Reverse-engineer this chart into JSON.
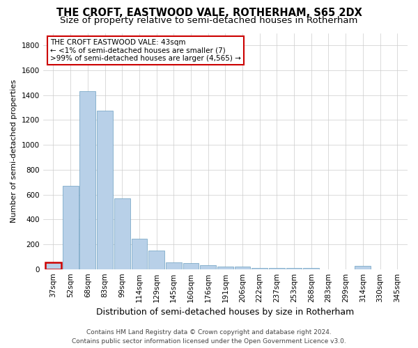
{
  "title": "THE CROFT, EASTWOOD VALE, ROTHERHAM, S65 2DX",
  "subtitle": "Size of property relative to semi-detached houses in Rotherham",
  "xlabel": "Distribution of semi-detached houses by size in Rotherham",
  "ylabel": "Number of semi-detached properties",
  "categories": [
    "37sqm",
    "52sqm",
    "68sqm",
    "83sqm",
    "99sqm",
    "114sqm",
    "129sqm",
    "145sqm",
    "160sqm",
    "176sqm",
    "191sqm",
    "206sqm",
    "222sqm",
    "237sqm",
    "253sqm",
    "268sqm",
    "283sqm",
    "299sqm",
    "314sqm",
    "330sqm",
    "345sqm"
  ],
  "values": [
    55,
    670,
    1430,
    1275,
    570,
    245,
    150,
    55,
    50,
    30,
    20,
    20,
    10,
    10,
    10,
    10,
    0,
    0,
    25,
    0,
    0
  ],
  "bar_color": "#b8d0e8",
  "bar_edge_color": "#6a9ec0",
  "highlight_bar_index": 0,
  "annotation_line1": "THE CROFT EASTWOOD VALE: 43sqm",
  "annotation_line2": "← <1% of semi-detached houses are smaller (7)",
  "annotation_line3": ">99% of semi-detached houses are larger (4,565) →",
  "annotation_box_edge_color": "#cc0000",
  "ylim": [
    0,
    1900
  ],
  "yticks": [
    0,
    200,
    400,
    600,
    800,
    1000,
    1200,
    1400,
    1600,
    1800
  ],
  "footer_line1": "Contains HM Land Registry data © Crown copyright and database right 2024.",
  "footer_line2": "Contains public sector information licensed under the Open Government Licence v3.0.",
  "bg_color": "#ffffff",
  "grid_color": "#cccccc",
  "title_fontsize": 10.5,
  "subtitle_fontsize": 9.5,
  "xlabel_fontsize": 9,
  "ylabel_fontsize": 8,
  "tick_fontsize": 7.5,
  "annotation_fontsize": 7.5,
  "footer_fontsize": 6.5
}
